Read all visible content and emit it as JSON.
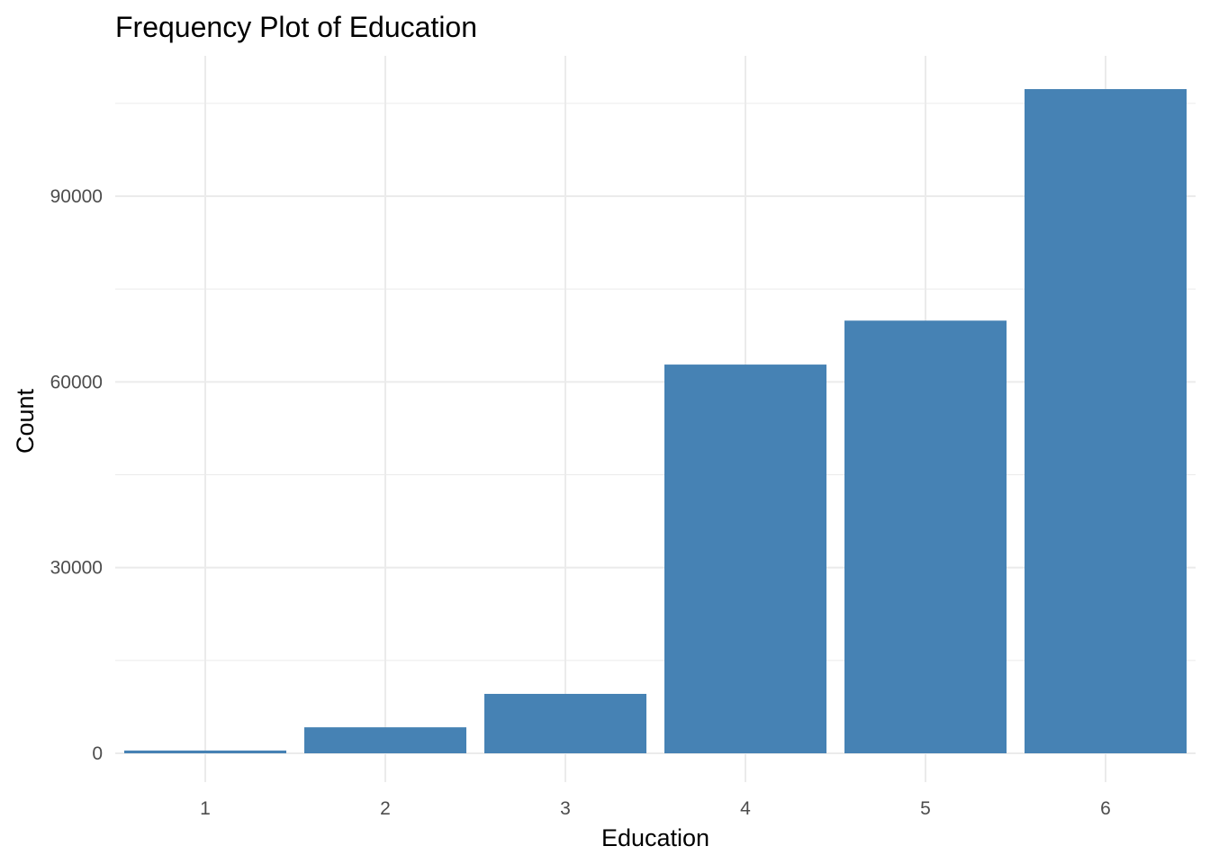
{
  "chart_data": {
    "type": "bar",
    "title": "Frequency Plot of Education",
    "xlabel": "Education",
    "ylabel": "Count",
    "categories": [
      "1",
      "2",
      "3",
      "4",
      "5",
      "6"
    ],
    "values": [
      450,
      4200,
      9600,
      62800,
      69900,
      107300
    ],
    "ylim": [
      0,
      110000
    ],
    "yticks": [
      0,
      30000,
      60000,
      90000
    ],
    "grid": true,
    "legend": "none",
    "bar_color": "#4682B4",
    "grid_color": "#ebebeb"
  }
}
